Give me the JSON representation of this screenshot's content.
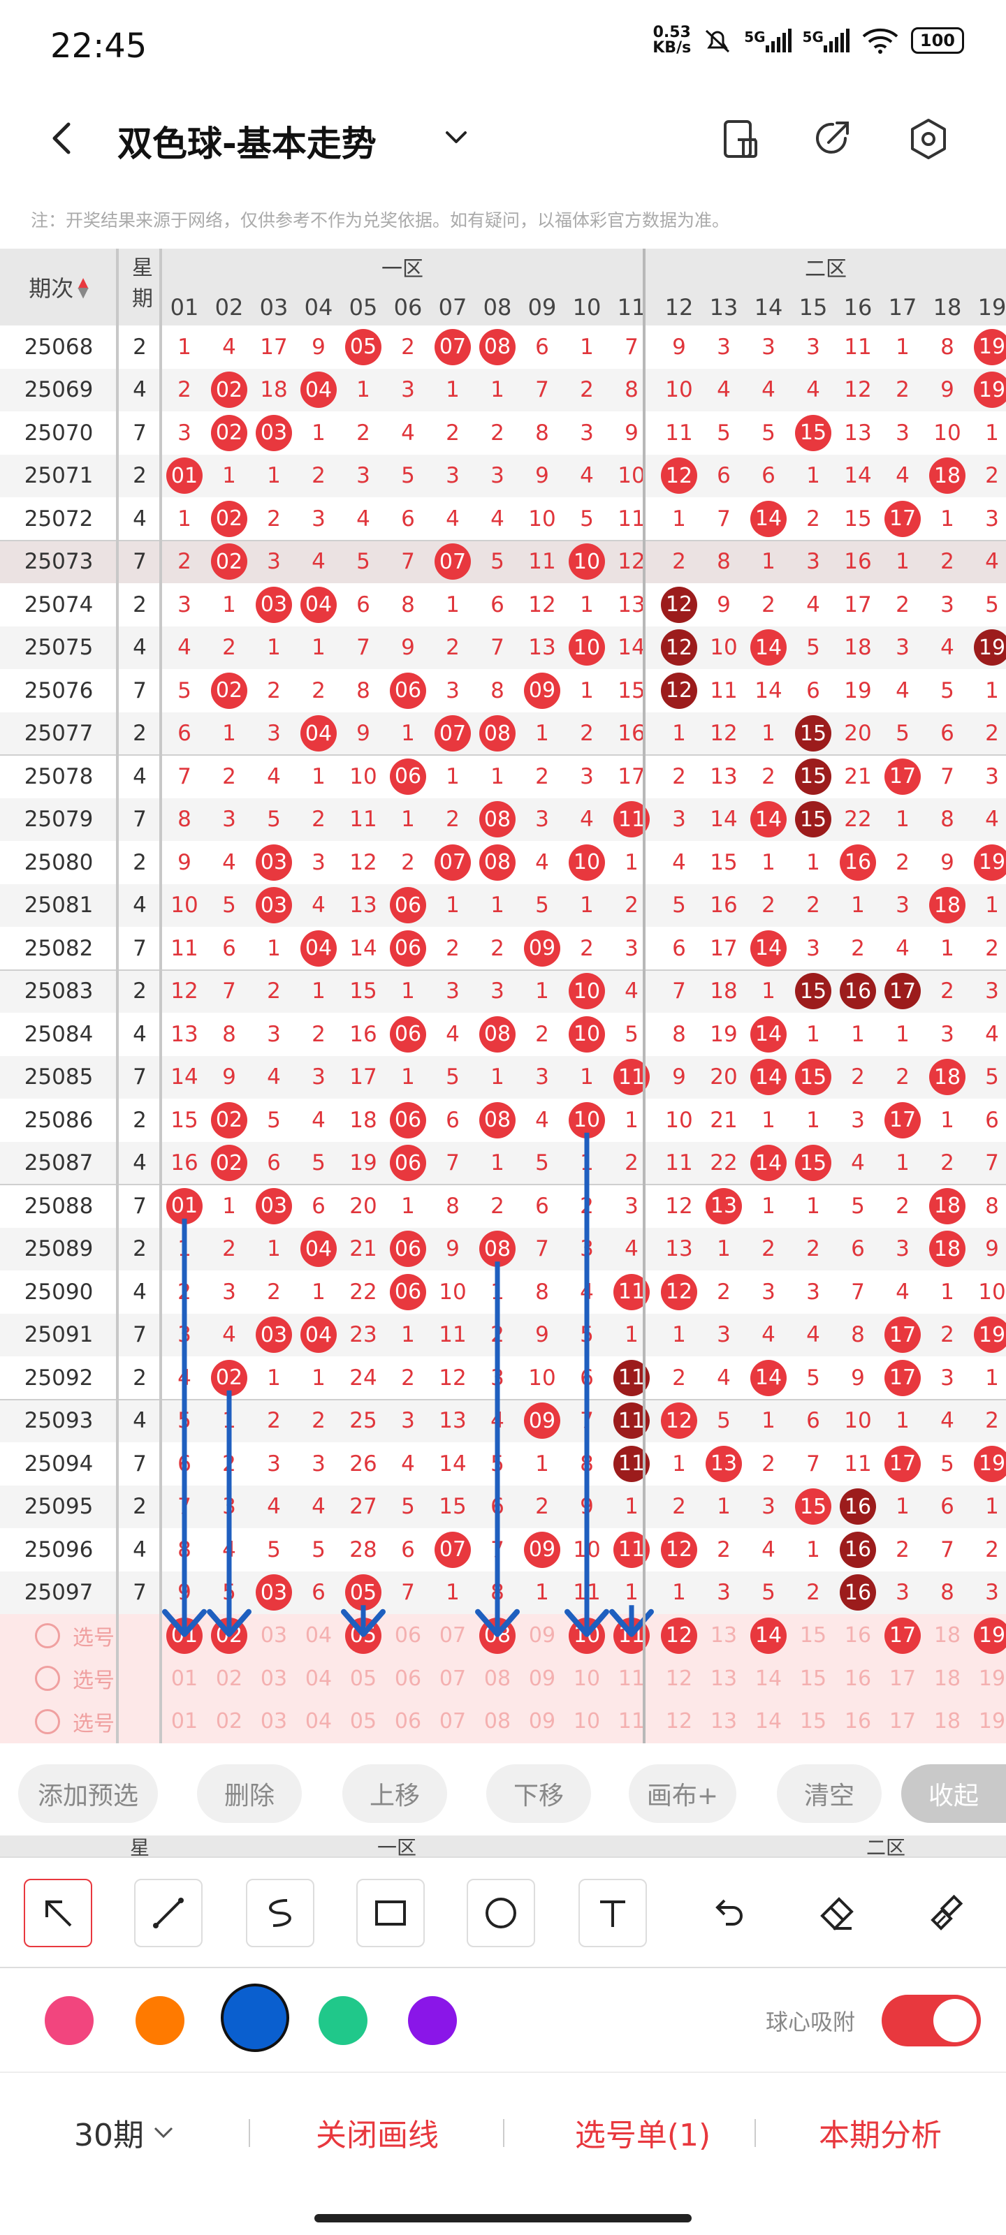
{
  "status_bar": {
    "time": "22:45",
    "net_speed_value": "0.53",
    "net_speed_unit": "KB/s",
    "sim1": "5G",
    "sim2": "5G",
    "battery": "100"
  },
  "header": {
    "title": "双色球-基本走势",
    "icons": [
      "back-icon",
      "chevron-down-icon",
      "phone-screen-icon",
      "share-icon",
      "settings-icon"
    ]
  },
  "notice": "注：开奖结果来源于网络，仅供参考不作为兑奖依据。如有疑问，以福体彩官方数据为准。",
  "table": {
    "col_issue": "期次",
    "col_weekday": "星期",
    "zone1": "一区",
    "zone2": "二区",
    "numbers": [
      "01",
      "02",
      "03",
      "04",
      "05",
      "06",
      "07",
      "08",
      "09",
      "10",
      "11",
      "12",
      "13",
      "14",
      "15",
      "16",
      "17",
      "18",
      "19"
    ],
    "rows": [
      {
        "issue": "25068",
        "wd": "2",
        "cells": [
          "1",
          "4",
          "17",
          "9",
          "05",
          "2",
          "07",
          "08",
          "6",
          "1",
          "7",
          "9",
          "3",
          "3",
          "3",
          "11",
          "1",
          "8",
          "19"
        ]
      },
      {
        "issue": "25069",
        "wd": "4",
        "cells": [
          "2",
          "02",
          "18",
          "04",
          "1",
          "3",
          "1",
          "1",
          "7",
          "2",
          "8",
          "10",
          "4",
          "4",
          "4",
          "12",
          "2",
          "9",
          "19"
        ]
      },
      {
        "issue": "25070",
        "wd": "7",
        "cells": [
          "3",
          "02",
          "03",
          "1",
          "2",
          "4",
          "2",
          "2",
          "8",
          "3",
          "9",
          "11",
          "5",
          "5",
          "15",
          "13",
          "3",
          "10",
          "1"
        ]
      },
      {
        "issue": "25071",
        "wd": "2",
        "cells": [
          "01",
          "1",
          "1",
          "2",
          "3",
          "5",
          "3",
          "3",
          "9",
          "4",
          "10",
          "12",
          "6",
          "6",
          "1",
          "14",
          "4",
          "18",
          "2"
        ]
      },
      {
        "issue": "25072",
        "wd": "4",
        "cells": [
          "1",
          "02",
          "2",
          "3",
          "4",
          "6",
          "4",
          "4",
          "10",
          "5",
          "11",
          "1",
          "7",
          "14",
          "2",
          "15",
          "17",
          "1",
          "3"
        ]
      },
      {
        "issue": "25073",
        "wd": "7",
        "cells": [
          "2",
          "02",
          "3",
          "4",
          "5",
          "7",
          "07",
          "5",
          "11",
          "10",
          "12",
          "2",
          "8",
          "1",
          "3",
          "16",
          "1",
          "2",
          "4"
        ]
      },
      {
        "issue": "25074",
        "wd": "2",
        "cells": [
          "3",
          "1",
          "03",
          "04",
          "6",
          "8",
          "1",
          "6",
          "12",
          "1",
          "13",
          "12",
          "9",
          "2",
          "4",
          "17",
          "2",
          "3",
          "5"
        ]
      },
      {
        "issue": "25075",
        "wd": "4",
        "cells": [
          "4",
          "2",
          "1",
          "1",
          "7",
          "9",
          "2",
          "7",
          "13",
          "10",
          "14",
          "12",
          "10",
          "14",
          "5",
          "18",
          "3",
          "4",
          "19"
        ]
      },
      {
        "issue": "25076",
        "wd": "7",
        "cells": [
          "5",
          "02",
          "2",
          "2",
          "8",
          "06",
          "3",
          "8",
          "09",
          "1",
          "15",
          "12",
          "11",
          "14",
          "6",
          "19",
          "4",
          "5",
          "1"
        ]
      },
      {
        "issue": "25077",
        "wd": "2",
        "cells": [
          "6",
          "1",
          "3",
          "04",
          "9",
          "1",
          "07",
          "08",
          "1",
          "2",
          "16",
          "1",
          "12",
          "1",
          "15",
          "20",
          "5",
          "6",
          "2"
        ]
      },
      {
        "issue": "25078",
        "wd": "4",
        "cells": [
          "7",
          "2",
          "4",
          "1",
          "10",
          "06",
          "1",
          "1",
          "2",
          "3",
          "17",
          "2",
          "13",
          "2",
          "15",
          "21",
          "17",
          "7",
          "3"
        ]
      },
      {
        "issue": "25079",
        "wd": "7",
        "cells": [
          "8",
          "3",
          "5",
          "2",
          "11",
          "1",
          "2",
          "08",
          "3",
          "4",
          "11",
          "3",
          "14",
          "14",
          "15",
          "22",
          "1",
          "8",
          "4"
        ]
      },
      {
        "issue": "25080",
        "wd": "2",
        "cells": [
          "9",
          "4",
          "03",
          "3",
          "12",
          "2",
          "07",
          "08",
          "4",
          "10",
          "1",
          "4",
          "15",
          "1",
          "1",
          "16",
          "2",
          "9",
          "19"
        ]
      },
      {
        "issue": "25081",
        "wd": "4",
        "cells": [
          "10",
          "5",
          "03",
          "4",
          "13",
          "06",
          "1",
          "1",
          "5",
          "1",
          "2",
          "5",
          "16",
          "2",
          "2",
          "1",
          "3",
          "18",
          "1"
        ]
      },
      {
        "issue": "25082",
        "wd": "7",
        "cells": [
          "11",
          "6",
          "1",
          "04",
          "14",
          "06",
          "2",
          "2",
          "09",
          "2",
          "3",
          "6",
          "17",
          "14",
          "3",
          "2",
          "4",
          "1",
          "2"
        ]
      },
      {
        "issue": "25083",
        "wd": "2",
        "cells": [
          "12",
          "7",
          "2",
          "1",
          "15",
          "1",
          "3",
          "3",
          "1",
          "10",
          "4",
          "7",
          "18",
          "1",
          "15",
          "16",
          "17",
          "2",
          "3"
        ]
      },
      {
        "issue": "25084",
        "wd": "4",
        "cells": [
          "13",
          "8",
          "3",
          "2",
          "16",
          "06",
          "4",
          "08",
          "2",
          "10",
          "5",
          "8",
          "19",
          "14",
          "1",
          "1",
          "1",
          "3",
          "4"
        ]
      },
      {
        "issue": "25085",
        "wd": "7",
        "cells": [
          "14",
          "9",
          "4",
          "3",
          "17",
          "1",
          "5",
          "1",
          "3",
          "1",
          "11",
          "9",
          "20",
          "14",
          "15",
          "2",
          "2",
          "18",
          "5"
        ]
      },
      {
        "issue": "25086",
        "wd": "2",
        "cells": [
          "15",
          "02",
          "5",
          "4",
          "18",
          "06",
          "6",
          "08",
          "4",
          "10",
          "1",
          "10",
          "21",
          "1",
          "1",
          "3",
          "17",
          "1",
          "6"
        ]
      },
      {
        "issue": "25087",
        "wd": "4",
        "cells": [
          "16",
          "02",
          "6",
          "5",
          "19",
          "06",
          "7",
          "1",
          "5",
          "1",
          "2",
          "11",
          "22",
          "14",
          "15",
          "4",
          "1",
          "2",
          "7"
        ]
      },
      {
        "issue": "25088",
        "wd": "7",
        "cells": [
          "01",
          "1",
          "03",
          "6",
          "20",
          "1",
          "8",
          "2",
          "6",
          "2",
          "3",
          "12",
          "13",
          "1",
          "1",
          "5",
          "2",
          "18",
          "8"
        ]
      },
      {
        "issue": "25089",
        "wd": "2",
        "cells": [
          "1",
          "2",
          "1",
          "04",
          "21",
          "06",
          "9",
          "08",
          "7",
          "3",
          "4",
          "13",
          "1",
          "2",
          "2",
          "6",
          "3",
          "18",
          "9"
        ]
      },
      {
        "issue": "25090",
        "wd": "4",
        "cells": [
          "2",
          "3",
          "2",
          "1",
          "22",
          "06",
          "10",
          "1",
          "8",
          "4",
          "11",
          "12",
          "2",
          "3",
          "3",
          "7",
          "4",
          "1",
          "10"
        ]
      },
      {
        "issue": "25091",
        "wd": "7",
        "cells": [
          "3",
          "4",
          "03",
          "04",
          "23",
          "1",
          "11",
          "2",
          "9",
          "5",
          "1",
          "1",
          "3",
          "4",
          "4",
          "8",
          "17",
          "2",
          "19"
        ]
      },
      {
        "issue": "25092",
        "wd": "2",
        "cells": [
          "4",
          "02",
          "1",
          "1",
          "24",
          "2",
          "12",
          "3",
          "10",
          "6",
          "11",
          "2",
          "4",
          "14",
          "5",
          "9",
          "17",
          "3",
          "1"
        ]
      },
      {
        "issue": "25093",
        "wd": "4",
        "cells": [
          "5",
          "1",
          "2",
          "2",
          "25",
          "3",
          "13",
          "4",
          "09",
          "7",
          "11",
          "12",
          "5",
          "1",
          "6",
          "10",
          "1",
          "4",
          "2"
        ]
      },
      {
        "issue": "25094",
        "wd": "7",
        "cells": [
          "6",
          "2",
          "3",
          "3",
          "26",
          "4",
          "14",
          "5",
          "1",
          "8",
          "11",
          "1",
          "13",
          "2",
          "7",
          "11",
          "17",
          "5",
          "19"
        ]
      },
      {
        "issue": "25095",
        "wd": "2",
        "cells": [
          "7",
          "3",
          "4",
          "4",
          "27",
          "5",
          "15",
          "6",
          "2",
          "9",
          "1",
          "2",
          "1",
          "3",
          "15",
          "16",
          "1",
          "6",
          "1"
        ]
      },
      {
        "issue": "25096",
        "wd": "4",
        "cells": [
          "8",
          "4",
          "5",
          "5",
          "28",
          "6",
          "07",
          "7",
          "09",
          "10",
          "11",
          "12",
          "2",
          "4",
          "1",
          "16",
          "2",
          "7",
          "2"
        ]
      },
      {
        "issue": "25097",
        "wd": "7",
        "cells": [
          "9",
          "5",
          "03",
          "6",
          "05",
          "7",
          "1",
          "8",
          "1",
          "11",
          "1",
          "1",
          "3",
          "5",
          "2",
          "16",
          "3",
          "8",
          "3"
        ]
      }
    ],
    "ball_cells": {
      "25068": [
        4,
        6,
        7,
        18
      ],
      "25069": [
        1,
        3,
        18
      ],
      "25070": [
        1,
        2,
        14
      ],
      "25071": [
        0,
        11,
        17
      ],
      "25072": [
        1,
        13,
        16
      ],
      "25073": [
        1,
        6,
        9
      ],
      "25074": [
        2,
        3,
        11
      ],
      "25075": [
        9,
        11,
        13,
        18
      ],
      "25076": [
        1,
        5,
        8,
        11
      ],
      "25077": [
        3,
        6,
        7,
        14
      ],
      "25078": [
        5,
        14,
        16
      ],
      "25079": [
        7,
        10,
        13,
        14
      ],
      "25080": [
        2,
        6,
        7,
        9,
        15,
        18
      ],
      "25081": [
        2,
        5,
        17
      ],
      "25082": [
        3,
        5,
        8,
        13
      ],
      "25083": [
        9,
        14,
        15,
        16
      ],
      "25084": [
        5,
        7,
        9,
        13
      ],
      "25085": [
        10,
        13,
        14,
        17
      ],
      "25086": [
        1,
        5,
        7,
        9,
        16
      ],
      "25087": [
        1,
        5,
        13,
        14
      ],
      "25088": [
        0,
        2,
        12,
        17
      ],
      "25089": [
        3,
        5,
        7,
        17
      ],
      "25090": [
        5,
        10,
        11
      ],
      "25091": [
        2,
        3,
        16,
        18
      ],
      "25092": [
        1,
        10,
        13,
        16
      ],
      "25093": [
        8,
        10,
        11
      ],
      "25094": [
        10,
        12,
        16,
        18
      ],
      "25095": [
        14,
        15
      ],
      "25096": [
        6,
        8,
        10,
        11,
        15
      ],
      "25097": [
        2,
        4,
        15
      ]
    },
    "dark_ball_cells": {
      "25074": [
        11
      ],
      "25075": [
        11,
        18
      ],
      "25076": [
        11
      ],
      "25077": [
        14
      ],
      "25078": [
        14
      ],
      "25079": [
        14
      ],
      "25083": [
        14,
        15,
        16
      ],
      "25092": [
        10
      ],
      "25093": [
        10
      ],
      "25094": [
        10
      ],
      "25095": [
        15
      ],
      "25096": [
        15
      ],
      "25097": [
        15
      ]
    },
    "pick_label": "选号",
    "pick_selected": [
      0,
      1,
      4,
      7,
      9,
      10,
      11,
      13,
      16,
      18
    ]
  },
  "actions": {
    "add_preselect": "添加预选",
    "delete": "删除",
    "move_up": "上移",
    "move_down": "下移",
    "canvas_plus": "画布+",
    "clear": "清空",
    "collapse": "收起"
  },
  "ghost_header": {
    "weekday_fragment": "星",
    "zone1": "一区",
    "zone2": "二区"
  },
  "tools": [
    "arrow-tool-icon",
    "line-tool-icon",
    "curve-tool-icon",
    "rectangle-tool-icon",
    "circle-tool-icon",
    "text-tool-icon",
    "undo-icon",
    "eraser-icon",
    "clear-brush-icon"
  ],
  "colors": {
    "swatches": [
      "#f2457e",
      "#ff7a00",
      "#0a5fcf",
      "#20c88a",
      "#8a16e8"
    ],
    "selected_index": 2,
    "accent": "#e8383e",
    "arrow_color": "#1f5fbf"
  },
  "snap": {
    "label": "球心吸附",
    "enabled": true
  },
  "bottom_nav": {
    "period": "30期",
    "close_lines": "关闭画线",
    "pick_list": "选号单(1)",
    "analysis": "本期分析"
  }
}
